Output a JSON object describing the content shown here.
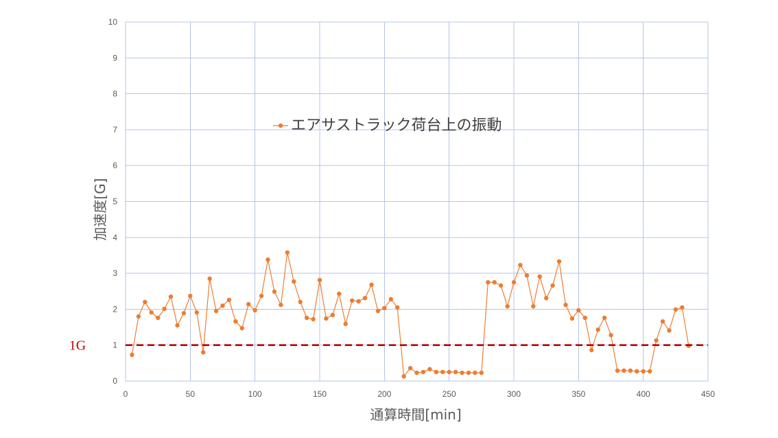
{
  "chart_data": {
    "type": "line",
    "xlabel": "通算時間[min]",
    "ylabel": "加速度[G]",
    "xlim": [
      0,
      450
    ],
    "ylim": [
      0,
      10
    ],
    "xticks": [
      0,
      50,
      100,
      150,
      200,
      250,
      300,
      350,
      400,
      450
    ],
    "yticks": [
      0,
      1,
      2,
      3,
      4,
      5,
      6,
      7,
      8,
      9,
      10
    ],
    "grid": true,
    "legend": "upper-center",
    "series": [
      {
        "name": "エアサストラック荷台上の振動",
        "color": "#ED7D31",
        "x": [
          5,
          10,
          15,
          20,
          25,
          30,
          35,
          40,
          45,
          50,
          55,
          60,
          65,
          70,
          75,
          80,
          85,
          90,
          95,
          100,
          105,
          110,
          115,
          120,
          125,
          130,
          135,
          140,
          145,
          150,
          155,
          160,
          165,
          170,
          175,
          180,
          185,
          190,
          195,
          200,
          205,
          210,
          215,
          220,
          225,
          230,
          235,
          240,
          245,
          250,
          255,
          260,
          265,
          270,
          275,
          280,
          285,
          290,
          295,
          300,
          305,
          310,
          315,
          320,
          325,
          330,
          335,
          340,
          345,
          350,
          355,
          360,
          365,
          370,
          375,
          380,
          385,
          390,
          395,
          400,
          405,
          410,
          415,
          420,
          425,
          430,
          435
        ],
        "y": [
          0.73,
          1.8,
          2.2,
          1.91,
          1.76,
          2.01,
          2.35,
          1.55,
          1.89,
          2.37,
          1.91,
          0.8,
          2.85,
          1.95,
          2.1,
          2.26,
          1.66,
          1.47,
          2.14,
          1.97,
          2.37,
          3.38,
          2.49,
          2.12,
          3.58,
          2.77,
          2.2,
          1.76,
          1.72,
          2.81,
          1.74,
          1.84,
          2.43,
          1.59,
          2.24,
          2.22,
          2.31,
          2.68,
          1.95,
          2.03,
          2.28,
          2.05,
          0.13,
          0.36,
          0.23,
          0.25,
          0.33,
          0.25,
          0.25,
          0.25,
          0.25,
          0.23,
          0.23,
          0.23,
          0.23,
          2.75,
          2.75,
          2.66,
          2.08,
          2.75,
          3.23,
          2.94,
          2.08,
          2.91,
          2.31,
          2.66,
          3.33,
          2.12,
          1.74,
          1.97,
          1.76,
          0.86,
          1.43,
          1.76,
          1.28,
          0.29,
          0.29,
          0.29,
          0.27,
          0.27,
          0.27,
          1.13,
          1.66,
          1.41,
          1.99,
          2.05,
          0.98
        ]
      }
    ],
    "reference_lines": [
      {
        "y": 1,
        "label": "1G",
        "color": "#C00000",
        "style": "dashed"
      }
    ]
  }
}
